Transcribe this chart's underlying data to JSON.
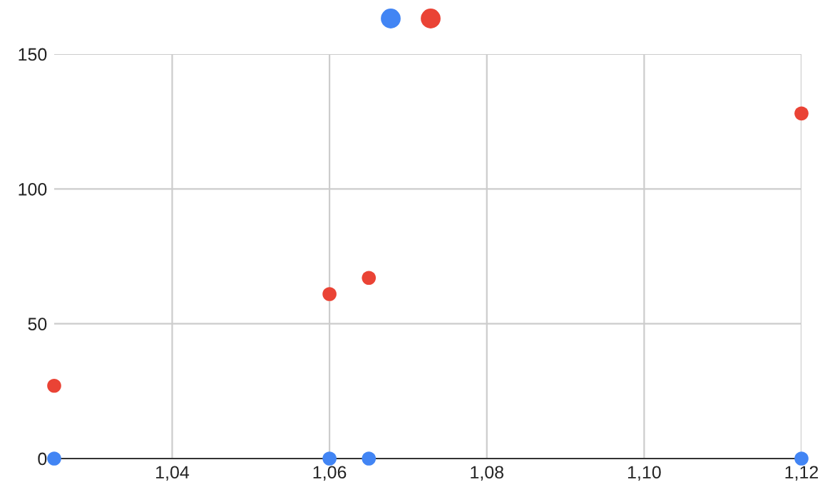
{
  "chart_data": {
    "type": "scatter",
    "x": [
      1.025,
      1.06,
      1.065,
      1.12
    ],
    "series": [
      {
        "color": "#4285f4",
        "values": [
          0,
          0,
          0,
          0
        ]
      },
      {
        "color": "#ea4335",
        "values": [
          27,
          61,
          67,
          128
        ]
      }
    ],
    "xlim": [
      1.025,
      1.12
    ],
    "xticks": [
      {
        "value": 1.04,
        "label": "1,04"
      },
      {
        "value": 1.06,
        "label": "1,06"
      },
      {
        "value": 1.08,
        "label": "1,08"
      },
      {
        "value": 1.1,
        "label": "1,10"
      },
      {
        "value": 1.12,
        "label": "1,12"
      }
    ],
    "ylim": [
      0,
      150
    ],
    "yticks": [
      0,
      50,
      100,
      150
    ],
    "grid": true,
    "marker": "circle"
  }
}
